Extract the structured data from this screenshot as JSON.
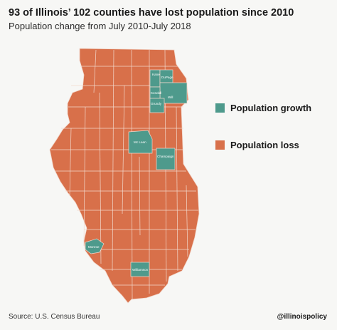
{
  "title": "93 of Illinois’ 102 counties have lost population since 2010",
  "subtitle": "Population change from July 2010-July 2018",
  "legend": {
    "growth": {
      "label": "Population growth",
      "color": "#4e9a8c"
    },
    "loss": {
      "label": "Population loss",
      "color": "#d8704a"
    }
  },
  "growth_counties": {
    "kane": "Kane",
    "dupage": "DuPage",
    "kendall": "Kendall",
    "will": "Will",
    "grundy": "Grundy",
    "mclean": "Mc Lean",
    "champaign": "Champaign",
    "monroe": "Monroe",
    "williamson": "Williamson"
  },
  "footer": {
    "source": "Source: U.S. Census Bureau",
    "handle": "@illinoispolicy"
  }
}
